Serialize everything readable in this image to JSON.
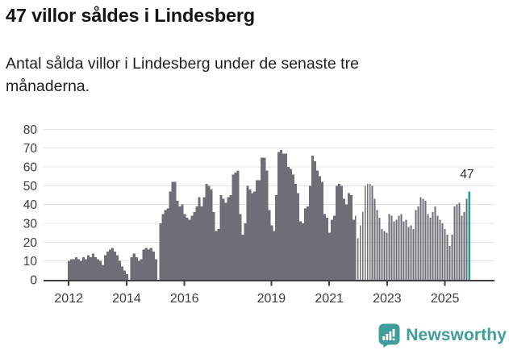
{
  "header": {
    "title": "47 villor såldes i Lindesberg",
    "subtitle": "Antal sålda villor i Lindesberg under de senaste tre månaderna."
  },
  "chart_data": {
    "type": "bar",
    "title": "47 villor såldes i Lindesberg",
    "subtitle": "Antal sålda villor i Lindesberg under de senaste tre månaderna.",
    "frequency": "monthly",
    "x_start": "2012-01",
    "x_end": "2025-11",
    "ylim": [
      0,
      80
    ],
    "yticks": [
      0,
      10,
      20,
      30,
      40,
      50,
      60,
      70,
      80
    ],
    "xticks": [
      2012,
      2014,
      2016,
      2019,
      2021,
      2023,
      2025
    ],
    "grid": true,
    "legend": "none",
    "bar_color": "#6e6e76",
    "highlight_color": "#279b94",
    "grid_color": "#e3e3e3",
    "axis_color": "#3f3f3f",
    "tick_label_color": "#3d3d3d",
    "values": [
      10,
      11,
      11,
      12,
      11,
      10,
      12,
      11,
      13,
      12,
      14,
      12,
      11,
      10,
      8,
      13,
      15,
      16,
      17,
      15,
      13,
      10,
      7,
      5,
      3,
      0,
      12,
      14,
      12,
      10,
      11,
      16,
      17,
      16,
      17,
      15,
      11,
      0,
      30,
      35,
      37,
      38,
      47,
      52,
      52,
      42,
      39,
      40,
      35,
      33,
      32,
      34,
      36,
      39,
      44,
      39,
      44,
      51,
      50,
      48,
      36,
      26,
      27,
      45,
      43,
      41,
      44,
      45,
      56,
      57,
      58,
      35,
      24,
      30,
      50,
      48,
      46,
      47,
      53,
      53,
      65,
      65,
      58,
      37,
      29,
      26,
      45,
      68,
      69,
      67,
      67,
      60,
      59,
      56,
      51,
      46,
      31,
      30,
      38,
      39,
      50,
      66,
      63,
      58,
      55,
      52,
      35,
      33,
      25,
      32,
      34,
      50,
      51,
      50,
      43,
      40,
      46,
      45,
      32,
      34,
      22,
      29,
      36,
      50,
      51,
      51,
      50,
      43,
      37,
      33,
      27,
      26,
      25,
      35,
      34,
      31,
      32,
      34,
      35,
      31,
      32,
      28,
      29,
      27,
      37,
      39,
      44,
      43,
      42,
      35,
      33,
      36,
      39,
      34,
      32,
      30,
      27,
      24,
      18,
      24,
      39,
      40,
      41,
      34,
      36,
      43,
      47
    ],
    "highlight": {
      "index": 166,
      "value": 47,
      "label": "47"
    }
  },
  "annotation": {
    "last_value_label": "47"
  },
  "footer": {
    "brand": "Newsworthy",
    "brand_color": "#3f9e9a"
  }
}
